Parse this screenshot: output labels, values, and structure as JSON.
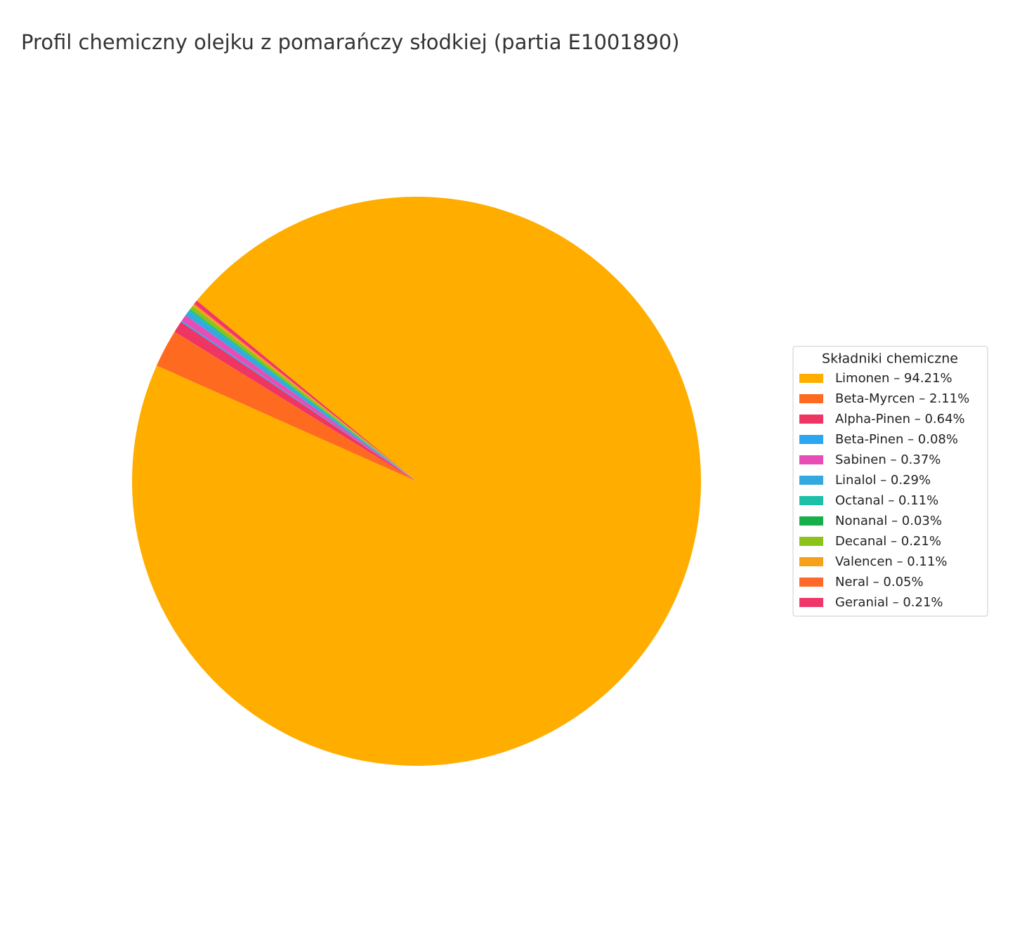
{
  "chart_data": {
    "type": "pie",
    "title": "Profil chemiczny olejku z pomarańczy słodkiej (partia E1001890)",
    "legend_title": "Składniki chemiczne",
    "legend": "right",
    "categories": [
      "Limonen – 94.21%",
      "Beta-Myrcen – 2.11%",
      "Alpha-Pinen – 0.64%",
      "Beta-Pinen – 0.08%",
      "Sabinen – 0.37%",
      "Linalol – 0.29%",
      "Octanal – 0.11%",
      "Nonanal – 0.03%",
      "Decanal – 0.21%",
      "Valencen – 0.11%",
      "Neral – 0.05%",
      "Geranial – 0.21%"
    ],
    "values": [
      94.21,
      2.11,
      0.64,
      0.08,
      0.37,
      0.29,
      0.11,
      0.03,
      0.21,
      0.11,
      0.05,
      0.21
    ],
    "colors": [
      "#FFAE00",
      "#FF6A21",
      "#EE3563",
      "#2CA6F0",
      "#E84CB5",
      "#34A9E0",
      "#1DBFA8",
      "#15B04A",
      "#8CC21A",
      "#F7A11A",
      "#FF6A2A",
      "#EF3769"
    ]
  }
}
